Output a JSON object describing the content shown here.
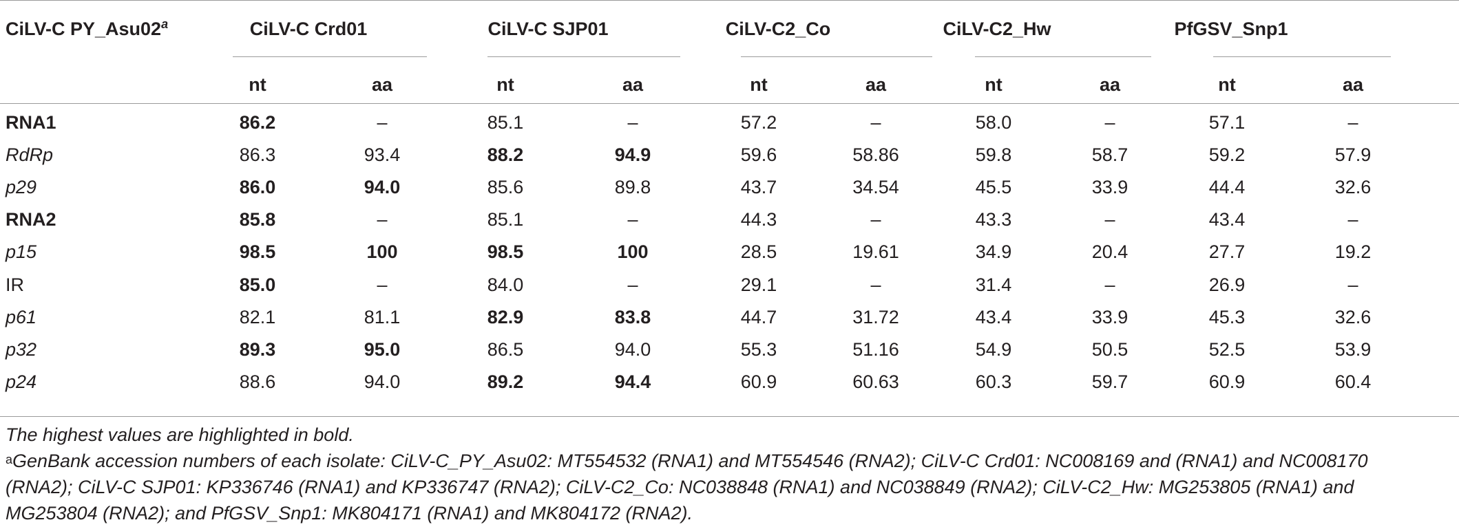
{
  "header": {
    "first_col_label": "CiLV-C PY_Asu02",
    "first_col_sup": "a",
    "groups": [
      "CiLV-C Crd01",
      "CiLV-C SJP01",
      "CiLV-C2_Co",
      "CiLV-C2_Hw",
      "PfGSV_Snp1"
    ],
    "sub": [
      "nt",
      "aa",
      "nt",
      "aa",
      "nt",
      "aa",
      "nt",
      "aa",
      "nt",
      "aa"
    ]
  },
  "rows": [
    {
      "label": "RNA1",
      "style": "bold",
      "values": [
        "86.2",
        "–",
        "85.1",
        "–",
        "57.2",
        "–",
        "58.0",
        "–",
        "57.1",
        "–"
      ],
      "bold": [
        true,
        false,
        false,
        false,
        false,
        false,
        false,
        false,
        false,
        false
      ]
    },
    {
      "label": "RdRp",
      "style": "italic",
      "values": [
        "86.3",
        "93.4",
        "88.2",
        "94.9",
        "59.6",
        "58.86",
        "59.8",
        "58.7",
        "59.2",
        "57.9"
      ],
      "bold": [
        false,
        false,
        true,
        true,
        false,
        false,
        false,
        false,
        false,
        false
      ]
    },
    {
      "label": "p29",
      "style": "italic",
      "values": [
        "86.0",
        "94.0",
        "85.6",
        "89.8",
        "43.7",
        "34.54",
        "45.5",
        "33.9",
        "44.4",
        "32.6"
      ],
      "bold": [
        true,
        true,
        false,
        false,
        false,
        false,
        false,
        false,
        false,
        false
      ]
    },
    {
      "label": "RNA2",
      "style": "bold",
      "values": [
        "85.8",
        "–",
        "85.1",
        "–",
        "44.3",
        "–",
        "43.3",
        "–",
        "43.4",
        "–"
      ],
      "bold": [
        true,
        false,
        false,
        false,
        false,
        false,
        false,
        false,
        false,
        false
      ]
    },
    {
      "label": "p15",
      "style": "italic",
      "values": [
        "98.5",
        "100",
        "98.5",
        "100",
        "28.5",
        "19.61",
        "34.9",
        "20.4",
        "27.7",
        "19.2"
      ],
      "bold": [
        true,
        true,
        true,
        true,
        false,
        false,
        false,
        false,
        false,
        false
      ]
    },
    {
      "label": "IR",
      "style": "normal",
      "values": [
        "85.0",
        "–",
        "84.0",
        "–",
        "29.1",
        "–",
        "31.4",
        "–",
        "26.9",
        "–"
      ],
      "bold": [
        true,
        false,
        false,
        false,
        false,
        false,
        false,
        false,
        false,
        false
      ]
    },
    {
      "label": "p61",
      "style": "italic",
      "values": [
        "82.1",
        "81.1",
        "82.9",
        "83.8",
        "44.7",
        "31.72",
        "43.4",
        "33.9",
        "45.3",
        "32.6"
      ],
      "bold": [
        false,
        false,
        true,
        true,
        false,
        false,
        false,
        false,
        false,
        false
      ]
    },
    {
      "label": "p32",
      "style": "italic",
      "values": [
        "89.3",
        "95.0",
        "86.5",
        "94.0",
        "55.3",
        "51.16",
        "54.9",
        "50.5",
        "52.5",
        "53.9"
      ],
      "bold": [
        true,
        true,
        false,
        false,
        false,
        false,
        false,
        false,
        false,
        false
      ]
    },
    {
      "label": "p24",
      "style": "italic",
      "values": [
        "88.6",
        "94.0",
        "89.2",
        "94.4",
        "60.9",
        "60.63",
        "60.3",
        "59.7",
        "60.9",
        "60.4"
      ],
      "bold": [
        false,
        false,
        true,
        true,
        false,
        false,
        false,
        false,
        false,
        false
      ]
    }
  ],
  "footnotes": {
    "note1": "The highest values are highlighted in bold.",
    "note2_sup": "a",
    "note2_line1": "GenBank accession numbers of each isolate: CiLV-C_PY_Asu02: MT554532 (RNA1) and MT554546 (RNA2); CiLV-C Crd01: NC008169 and (RNA1) and NC008170",
    "note2_line2": "(RNA2); CiLV-C SJP01: KP336746 (RNA1) and KP336747 (RNA2); CiLV-C2_Co: NC038848 (RNA1) and NC038849 (RNA2); CiLV-C2_Hw: MG253805 (RNA1) and",
    "note2_line3": "MG253804 (RNA2); and PfGSV_Snp1: MK804171 (RNA1) and MK804172 (RNA2)."
  }
}
